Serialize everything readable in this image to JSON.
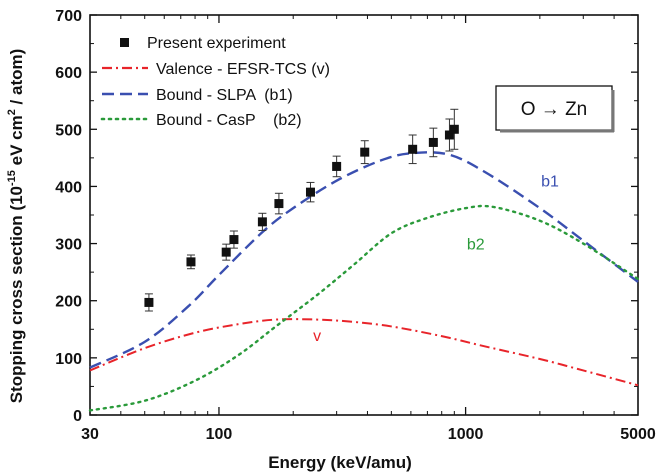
{
  "chart_data": {
    "type": "scatter",
    "title": "",
    "xlabel": "Energy (keV/amu)",
    "ylabel": "Stopping cross section (10",
    "ylabel_sup1": "-15",
    "ylabel_mid": " eV cm",
    "ylabel_sup2": "2",
    "ylabel_end": " / atom)",
    "x_scale": "log",
    "xlim": [
      30,
      5000
    ],
    "ylim": [
      0,
      700
    ],
    "x_ticks": [
      30,
      100,
      1000,
      5000
    ],
    "x_tick_labels": [
      "30",
      "100",
      "1000",
      "5000"
    ],
    "y_ticks": [
      0,
      100,
      200,
      300,
      400,
      500,
      600,
      700
    ],
    "y_tick_labels": [
      "0",
      "100",
      "200",
      "300",
      "400",
      "500",
      "600",
      "700"
    ],
    "grid": false,
    "legend_position": "top-left",
    "annotation_box": "O → Zn",
    "series": [
      {
        "name": "Present experiment",
        "kind": "points",
        "color": "#111111",
        "points": [
          {
            "x": 52,
            "y": 197,
            "err": 15
          },
          {
            "x": 77,
            "y": 268,
            "err": 12
          },
          {
            "x": 107,
            "y": 285,
            "err": 14
          },
          {
            "x": 115,
            "y": 307,
            "err": 15
          },
          {
            "x": 150,
            "y": 338,
            "err": 15
          },
          {
            "x": 175,
            "y": 370,
            "err": 18
          },
          {
            "x": 235,
            "y": 390,
            "err": 17
          },
          {
            "x": 300,
            "y": 435,
            "err": 18
          },
          {
            "x": 390,
            "y": 460,
            "err": 20
          },
          {
            "x": 610,
            "y": 465,
            "err": 25
          },
          {
            "x": 740,
            "y": 477,
            "err": 25
          },
          {
            "x": 860,
            "y": 490,
            "err": 28
          },
          {
            "x": 900,
            "y": 500,
            "err": 35
          }
        ]
      },
      {
        "name": "Valence - EFSR-TCS (v)",
        "kind": "line",
        "color": "#e8242a",
        "dash": "10,4,2,4",
        "label": "v",
        "points": [
          [
            30,
            78
          ],
          [
            50,
            117
          ],
          [
            80,
            144
          ],
          [
            120,
            159
          ],
          [
            170,
            167
          ],
          [
            250,
            167
          ],
          [
            350,
            163
          ],
          [
            500,
            155
          ],
          [
            800,
            138
          ],
          [
            1200,
            120
          ],
          [
            2000,
            98
          ],
          [
            3000,
            78
          ],
          [
            5000,
            52
          ]
        ]
      },
      {
        "name": "Bound - SLPA  (b1)",
        "kind": "line",
        "color": "#3a4fb0",
        "dash": "12,6",
        "label": "b1",
        "points": [
          [
            30,
            83
          ],
          [
            50,
            128
          ],
          [
            75,
            190
          ],
          [
            100,
            245
          ],
          [
            150,
            320
          ],
          [
            200,
            362
          ],
          [
            300,
            410
          ],
          [
            450,
            445
          ],
          [
            600,
            458
          ],
          [
            850,
            456
          ],
          [
            1200,
            425
          ],
          [
            2000,
            362
          ],
          [
            3000,
            305
          ],
          [
            5000,
            233
          ]
        ]
      },
      {
        "name": "Bound - CasP    (b2)",
        "kind": "line",
        "color": "#2a9a3a",
        "dash": "2,5",
        "label": "b2",
        "points": [
          [
            30,
            8
          ],
          [
            50,
            25
          ],
          [
            80,
            60
          ],
          [
            120,
            105
          ],
          [
            170,
            155
          ],
          [
            250,
            210
          ],
          [
            350,
            262
          ],
          [
            500,
            318
          ],
          [
            700,
            345
          ],
          [
            1000,
            362
          ],
          [
            1300,
            364
          ],
          [
            2000,
            340
          ],
          [
            3000,
            300
          ],
          [
            5000,
            238
          ]
        ]
      }
    ]
  }
}
